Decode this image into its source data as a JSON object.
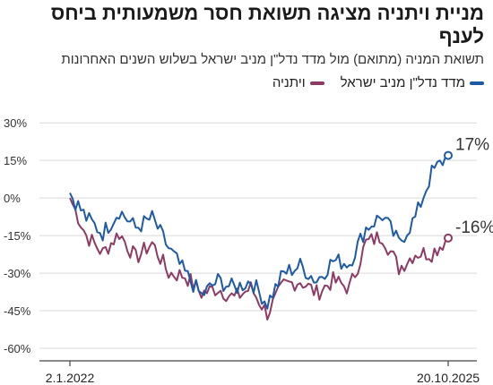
{
  "title": "מניית ויתניה מציגה תשואת חסר משמעותית ביחס לענף",
  "subtitle": "תשואת המניה (מתואם) מול מדד נדל\"ן מניב ישראל בשלוש השנים האחרונות",
  "colors": {
    "index": "#1f5aa6",
    "stock": "#8e3b63",
    "grid": "#d9d9d9",
    "axis": "#444444"
  },
  "chart_data": {
    "type": "line",
    "title": "מניית ויתניה מציגה תשואת חסר משמעותית ביחס לענף",
    "subtitle": "תשואת המניה (מתואם) מול מדד נדל\"ן מניב ישראל בשלוש השנים האחרונות",
    "y_unit": "%",
    "ylim": [
      -65,
      34
    ],
    "yticks": [
      30,
      15,
      0,
      -15,
      -30,
      -45,
      -60
    ],
    "ytick_labels": [
      "30%",
      "15%",
      "0%",
      "-15%",
      "-30%",
      "-45%",
      "-60%"
    ],
    "x_range": [
      "2022-01-02",
      "2025-10-20"
    ],
    "xtick_labels": [
      "2.1.2022",
      "20.10.2025"
    ],
    "grid": "horizontal",
    "legend_placement": "top-right",
    "x": [
      "2022-01",
      "2022-03",
      "2022-05",
      "2022-07",
      "2022-09",
      "2022-11",
      "2023-01",
      "2023-03",
      "2023-05",
      "2023-07",
      "2023-09",
      "2023-11",
      "2024-01",
      "2024-03",
      "2024-05",
      "2024-07",
      "2024-09",
      "2024-11",
      "2025-01",
      "2025-03",
      "2025-05",
      "2025-07",
      "2025-09",
      "2025-10"
    ],
    "series": [
      {
        "name": "מדד נדל\"ן מניב ישראל",
        "color": "#1f5aa6",
        "end_label": "17%",
        "values": [
          2,
          -8,
          -14,
          -5,
          -12,
          -8,
          -20,
          -30,
          -39,
          -33,
          -36,
          -33,
          -42,
          -30,
          -27,
          -33,
          -25,
          -26,
          -12,
          -7,
          -18,
          -8,
          10,
          17
        ]
      },
      {
        "name": "ויתניה",
        "color": "#8e3b63",
        "end_label": "-16%",
        "values": [
          0,
          -15,
          -22,
          -14,
          -24,
          -18,
          -30,
          -31,
          -38,
          -36,
          -40,
          -36,
          -46,
          -35,
          -33,
          -38,
          -33,
          -36,
          -18,
          -15,
          -28,
          -22,
          -22,
          -16
        ]
      }
    ]
  }
}
